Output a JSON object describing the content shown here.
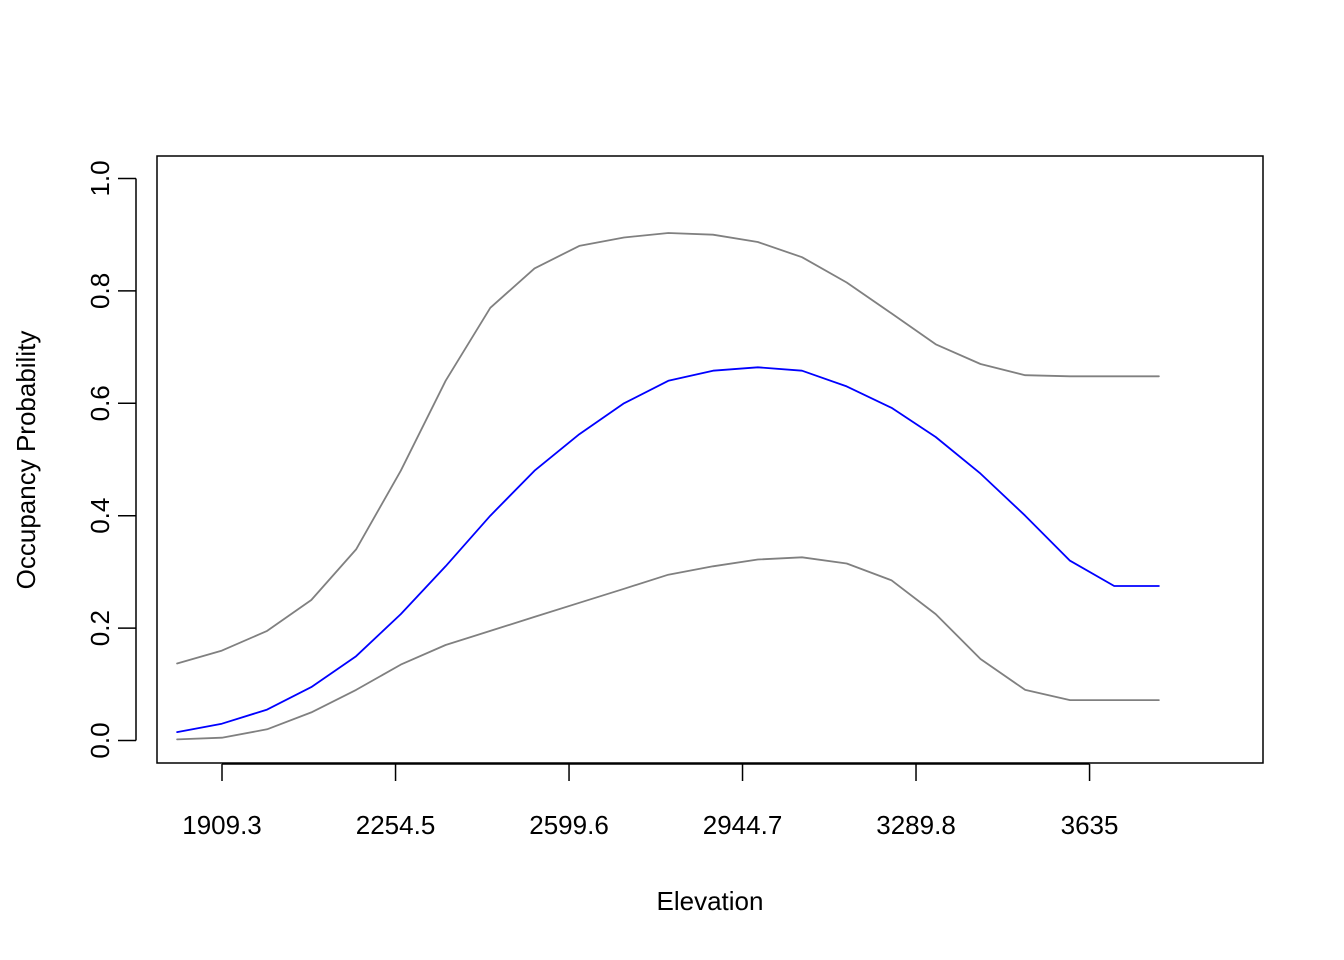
{
  "chart_data": {
    "type": "line",
    "title": "",
    "xlabel": "Elevation",
    "ylabel": "Occupancy Probability",
    "xlim": [
      1780,
      3980
    ],
    "ylim": [
      -0.04,
      1.04
    ],
    "x_ticks": [
      1909.3,
      2254.5,
      2599.6,
      2944.7,
      3289.8,
      3635
    ],
    "x_tick_labels": [
      "1909.3",
      "2254.5",
      "2599.6",
      "2944.7",
      "3289.8",
      "3635"
    ],
    "y_ticks": [
      0.0,
      0.2,
      0.4,
      0.6,
      0.8,
      1.0
    ],
    "y_tick_labels": [
      "0.0",
      "0.2",
      "0.4",
      "0.6",
      "0.8",
      "1.0"
    ],
    "grid": false,
    "legend": "none",
    "x": [
      1820,
      1909,
      1999,
      2087,
      2176,
      2265,
      2354,
      2443,
      2531,
      2620,
      2709,
      2797,
      2886,
      2975,
      3063,
      3152,
      3241,
      3329,
      3418,
      3507,
      3596,
      3684,
      3773
    ],
    "series": [
      {
        "color": "#0000FF",
        "values": [
          0.015,
          0.03,
          0.055,
          0.095,
          0.15,
          0.225,
          0.31,
          0.4,
          0.48,
          0.545,
          0.6,
          0.64,
          0.658,
          0.664,
          0.658,
          0.63,
          0.592,
          0.54,
          0.475,
          0.4,
          0.32,
          0.275,
          0.275
        ]
      },
      {
        "color": "#808080",
        "values": [
          0.137,
          0.16,
          0.195,
          0.25,
          0.34,
          0.48,
          0.64,
          0.77,
          0.84,
          0.88,
          0.895,
          0.903,
          0.9,
          0.887,
          0.86,
          0.815,
          0.76,
          0.705,
          0.67,
          0.65,
          0.648,
          0.648,
          0.648
        ]
      },
      {
        "color": "#808080",
        "values": [
          0.002,
          0.005,
          0.02,
          0.05,
          0.09,
          0.135,
          0.17,
          0.195,
          0.22,
          0.245,
          0.27,
          0.295,
          0.31,
          0.322,
          0.326,
          0.315,
          0.285,
          0.225,
          0.145,
          0.09,
          0.072,
          0.072,
          0.072
        ]
      }
    ]
  },
  "colors": {
    "axis": "#000000",
    "mean_line": "#0000FF",
    "ci_lines": "#808080"
  }
}
